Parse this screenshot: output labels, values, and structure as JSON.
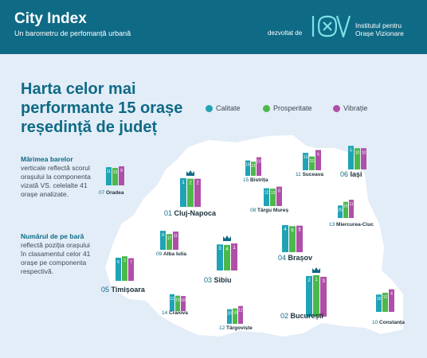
{
  "header": {
    "title": "City Index",
    "subtitle": "Un barometru de perfomanță urbană",
    "developed_by": "dezvoltat de",
    "logo_text": "IOV",
    "institute_line1": "Institutul pentru",
    "institute_line2": "Orașe Vizionare"
  },
  "headline": {
    "line1": "Harta celor mai",
    "line2": "performante 15 orașe",
    "line3": "reședință de județ"
  },
  "notes": {
    "bars_strong": "Mărimea barelor",
    "bars_text": "verticale reflectă scorul orașului la componenta vizată VS. celelalte 41 orașe analizate.",
    "rank_strong": "Numărul de pe bară",
    "rank_text": "reflectă poziția orașului în clasamentul celor 41 orașe pe componenta respectivă."
  },
  "colors": {
    "header_bg": "#0f6a86",
    "map_fill": "#ffffff",
    "calitate": "#1fa3b5",
    "prosperitate": "#4cb84a",
    "vibratie": "#b04fa8",
    "rank_label": "#0f6a86"
  },
  "chart_data": {
    "type": "bar",
    "title": "Harta celor mai performante 15 orașe reședință de județ",
    "series_names": [
      "Calitate",
      "Prosperitate",
      "Vibrație"
    ],
    "legend_position": "top-right",
    "value_meaning": "rank among 41 cities (1 = best)",
    "cities": [
      {
        "rank": "01",
        "name": "Cluj-Napoca",
        "values": [
          1,
          2,
          2
        ],
        "has_crown": true
      },
      {
        "rank": "02",
        "name": "București",
        "values": [
          2,
          1,
          3
        ],
        "has_crown": true
      },
      {
        "rank": "03",
        "name": "Sibiu",
        "values": [
          3,
          4,
          1
        ],
        "has_crown": true
      },
      {
        "rank": "04",
        "name": "Brașov",
        "values": [
          4,
          6,
          5
        ],
        "has_crown": false
      },
      {
        "rank": "05",
        "name": "Timișoara",
        "values": [
          6,
          3,
          7
        ],
        "has_crown": false
      },
      {
        "rank": "06",
        "name": "Iași",
        "values": [
          5,
          10,
          10
        ],
        "has_crown": false
      },
      {
        "rank": "07",
        "name": "Oradea",
        "values": [
          11,
          13,
          9
        ],
        "has_crown": false
      },
      {
        "rank": "08",
        "name": "Târgu Mureș",
        "values": [
          12,
          13,
          8
        ],
        "has_crown": false
      },
      {
        "rank": "09",
        "name": "Alba Iulia",
        "values": [
          9,
          17,
          11
        ],
        "has_crown": false
      },
      {
        "rank": "10",
        "name": "Constanța",
        "values": [
          16,
          12,
          4
        ],
        "has_crown": false
      },
      {
        "rank": "11",
        "name": "Suceava",
        "values": [
          13,
          22,
          6
        ],
        "has_crown": false
      },
      {
        "rank": "12",
        "name": "Târgoviște",
        "values": [
          20,
          18,
          12
        ],
        "has_crown": false
      },
      {
        "rank": "13",
        "name": "Miercurea-Ciuc",
        "values": [
          25,
          16,
          11
        ],
        "has_crown": false
      },
      {
        "rank": "14",
        "name": "Craiova",
        "values": [
          11,
          15,
          16
        ],
        "has_crown": false
      },
      {
        "rank": "15",
        "name": "Bistrița",
        "values": [
          18,
          21,
          10
        ],
        "has_crown": false
      }
    ]
  }
}
